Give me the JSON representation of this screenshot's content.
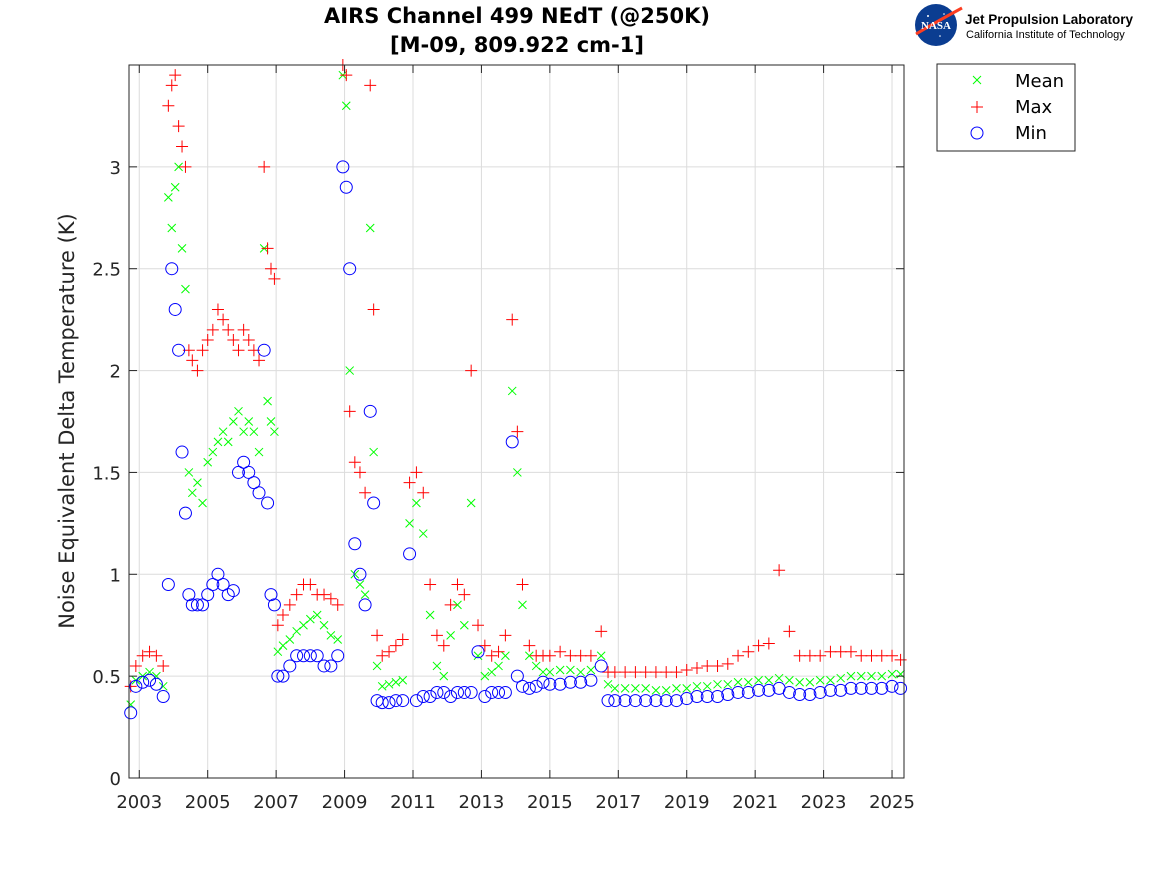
{
  "header": {
    "logo_name": "NASA",
    "org_name": "Jet Propulsion Laboratory",
    "org_subtitle": "California Institute of Technology"
  },
  "chart_data": {
    "type": "scatter",
    "title": [
      "AIRS Channel 499 NEdT (@250K)",
      "[M-09, 809.922 cm-1]"
    ],
    "xlabel": "",
    "ylabel": "Noise Equivalent Delta Temperature (K)",
    "xlim": [
      2002.7,
      2025.35
    ],
    "ylim": [
      0,
      3.5
    ],
    "x_ticks": [
      2003,
      2005,
      2007,
      2009,
      2011,
      2013,
      2015,
      2017,
      2019,
      2021,
      2023,
      2025
    ],
    "x_tick_labels": [
      "2003",
      "2005",
      "2007",
      "2009",
      "2011",
      "2013",
      "2015",
      "2017",
      "2019",
      "2021",
      "2023",
      "2025"
    ],
    "y_ticks": [
      0,
      0.5,
      1,
      1.5,
      2,
      2.5,
      3
    ],
    "y_tick_labels": [
      "0",
      "0.5",
      "1",
      "1.5",
      "2",
      "2.5",
      "3"
    ],
    "grid": true,
    "legend_position": "outside-top-right",
    "series": [
      {
        "name": "Mean",
        "marker": "x",
        "color": "#00ff00",
        "x": [
          2002.75,
          2002.9,
          2003.1,
          2003.3,
          2003.5,
          2003.7,
          2003.85,
          2003.95,
          2004.05,
          2004.15,
          2004.25,
          2004.35,
          2004.45,
          2004.55,
          2004.7,
          2004.85,
          2005.0,
          2005.15,
          2005.3,
          2005.45,
          2005.6,
          2005.75,
          2005.9,
          2006.05,
          2006.2,
          2006.35,
          2006.5,
          2006.65,
          2006.75,
          2006.85,
          2006.95,
          2007.05,
          2007.2,
          2007.4,
          2007.6,
          2007.8,
          2008.0,
          2008.2,
          2008.4,
          2008.6,
          2008.8,
          2008.95,
          2009.05,
          2009.15,
          2009.3,
          2009.45,
          2009.6,
          2009.75,
          2009.85,
          2009.95,
          2010.1,
          2010.3,
          2010.5,
          2010.7,
          2010.9,
          2011.1,
          2011.3,
          2011.5,
          2011.7,
          2011.9,
          2012.1,
          2012.3,
          2012.5,
          2012.7,
          2012.9,
          2013.1,
          2013.3,
          2013.5,
          2013.7,
          2013.9,
          2014.05,
          2014.2,
          2014.4,
          2014.6,
          2014.8,
          2015.0,
          2015.3,
          2015.6,
          2015.9,
          2016.2,
          2016.5,
          2016.7,
          2016.9,
          2017.2,
          2017.5,
          2017.8,
          2018.1,
          2018.4,
          2018.7,
          2019.0,
          2019.3,
          2019.6,
          2019.9,
          2020.2,
          2020.5,
          2020.8,
          2021.1,
          2021.4,
          2021.7,
          2022.0,
          2022.3,
          2022.6,
          2022.9,
          2023.2,
          2023.5,
          2023.8,
          2024.1,
          2024.4,
          2024.7,
          2025.0,
          2025.25
        ],
        "y": [
          0.36,
          0.48,
          0.5,
          0.52,
          0.5,
          0.45,
          2.85,
          2.7,
          2.9,
          3.0,
          2.6,
          2.4,
          1.5,
          1.4,
          1.45,
          1.35,
          1.55,
          1.6,
          1.65,
          1.7,
          1.65,
          1.75,
          1.8,
          1.7,
          1.75,
          1.7,
          1.6,
          2.6,
          1.85,
          1.75,
          1.7,
          0.62,
          0.65,
          0.68,
          0.72,
          0.75,
          0.78,
          0.8,
          0.75,
          0.7,
          0.68,
          3.45,
          3.3,
          2.0,
          1.0,
          0.95,
          0.9,
          2.7,
          1.6,
          0.55,
          0.45,
          0.46,
          0.47,
          0.48,
          1.25,
          1.35,
          1.2,
          0.8,
          0.55,
          0.5,
          0.7,
          0.85,
          0.75,
          1.35,
          0.6,
          0.5,
          0.52,
          0.55,
          0.6,
          1.9,
          1.5,
          0.85,
          0.6,
          0.55,
          0.52,
          0.52,
          0.53,
          0.53,
          0.52,
          0.53,
          0.6,
          0.46,
          0.44,
          0.44,
          0.44,
          0.44,
          0.43,
          0.43,
          0.44,
          0.44,
          0.45,
          0.45,
          0.46,
          0.46,
          0.47,
          0.47,
          0.48,
          0.48,
          0.49,
          0.48,
          0.47,
          0.47,
          0.48,
          0.48,
          0.49,
          0.5,
          0.5,
          0.5,
          0.5,
          0.51,
          0.51
        ]
      },
      {
        "name": "Max",
        "marker": "+",
        "color": "#ff0000",
        "x": [
          2002.75,
          2002.9,
          2003.1,
          2003.3,
          2003.5,
          2003.7,
          2003.85,
          2003.95,
          2004.05,
          2004.15,
          2004.25,
          2004.35,
          2004.45,
          2004.55,
          2004.7,
          2004.85,
          2005.0,
          2005.15,
          2005.3,
          2005.45,
          2005.6,
          2005.75,
          2005.9,
          2006.05,
          2006.2,
          2006.35,
          2006.5,
          2006.65,
          2006.75,
          2006.85,
          2006.95,
          2007.05,
          2007.2,
          2007.4,
          2007.6,
          2007.8,
          2008.0,
          2008.2,
          2008.4,
          2008.6,
          2008.8,
          2008.95,
          2009.05,
          2009.15,
          2009.3,
          2009.45,
          2009.6,
          2009.75,
          2009.85,
          2009.95,
          2010.1,
          2010.3,
          2010.5,
          2010.7,
          2010.9,
          2011.1,
          2011.3,
          2011.5,
          2011.7,
          2011.9,
          2012.1,
          2012.3,
          2012.5,
          2012.7,
          2012.9,
          2013.1,
          2013.3,
          2013.5,
          2013.7,
          2013.9,
          2014.05,
          2014.2,
          2014.4,
          2014.6,
          2014.8,
          2015.0,
          2015.3,
          2015.6,
          2015.9,
          2016.2,
          2016.5,
          2016.7,
          2016.9,
          2017.2,
          2017.5,
          2017.8,
          2018.1,
          2018.4,
          2018.7,
          2019.0,
          2019.3,
          2019.6,
          2019.9,
          2020.2,
          2020.5,
          2020.8,
          2021.1,
          2021.4,
          2021.7,
          2022.0,
          2022.3,
          2022.6,
          2022.9,
          2023.2,
          2023.5,
          2023.8,
          2024.1,
          2024.4,
          2024.7,
          2025.0,
          2025.25
        ],
        "y": [
          0.45,
          0.55,
          0.6,
          0.62,
          0.6,
          0.55,
          3.3,
          3.4,
          3.45,
          3.2,
          3.1,
          3.0,
          2.1,
          2.05,
          2.0,
          2.1,
          2.15,
          2.2,
          2.3,
          2.25,
          2.2,
          2.15,
          2.1,
          2.2,
          2.15,
          2.1,
          2.05,
          3.0,
          2.6,
          2.5,
          2.45,
          0.75,
          0.8,
          0.85,
          0.9,
          0.95,
          0.95,
          0.9,
          0.9,
          0.88,
          0.85,
          3.5,
          3.45,
          1.8,
          1.55,
          1.5,
          1.4,
          3.4,
          2.3,
          0.7,
          0.6,
          0.62,
          0.65,
          0.68,
          1.45,
          1.5,
          1.4,
          0.95,
          0.7,
          0.65,
          0.85,
          0.95,
          0.9,
          2.0,
          0.75,
          0.65,
          0.6,
          0.62,
          0.7,
          2.25,
          1.7,
          0.95,
          0.65,
          0.6,
          0.6,
          0.6,
          0.62,
          0.6,
          0.6,
          0.6,
          0.72,
          0.52,
          0.52,
          0.52,
          0.52,
          0.52,
          0.52,
          0.52,
          0.52,
          0.53,
          0.54,
          0.55,
          0.55,
          0.56,
          0.6,
          0.62,
          0.65,
          0.66,
          1.02,
          0.72,
          0.6,
          0.6,
          0.6,
          0.62,
          0.62,
          0.62,
          0.6,
          0.6,
          0.6,
          0.6,
          0.58
        ]
      },
      {
        "name": "Min",
        "marker": "o",
        "color": "#0000ff",
        "x": [
          2002.75,
          2002.9,
          2003.1,
          2003.3,
          2003.5,
          2003.7,
          2003.85,
          2003.95,
          2004.05,
          2004.15,
          2004.25,
          2004.35,
          2004.45,
          2004.55,
          2004.7,
          2004.85,
          2005.0,
          2005.15,
          2005.3,
          2005.45,
          2005.6,
          2005.75,
          2005.9,
          2006.05,
          2006.2,
          2006.35,
          2006.5,
          2006.65,
          2006.75,
          2006.85,
          2006.95,
          2007.05,
          2007.2,
          2007.4,
          2007.6,
          2007.8,
          2008.0,
          2008.2,
          2008.4,
          2008.6,
          2008.8,
          2008.95,
          2009.05,
          2009.15,
          2009.3,
          2009.45,
          2009.6,
          2009.75,
          2009.85,
          2009.95,
          2010.1,
          2010.3,
          2010.5,
          2010.7,
          2010.9,
          2011.1,
          2011.3,
          2011.5,
          2011.7,
          2011.9,
          2012.1,
          2012.3,
          2012.5,
          2012.7,
          2012.9,
          2013.1,
          2013.3,
          2013.5,
          2013.7,
          2013.9,
          2014.05,
          2014.2,
          2014.4,
          2014.6,
          2014.8,
          2015.0,
          2015.3,
          2015.6,
          2015.9,
          2016.2,
          2016.5,
          2016.7,
          2016.9,
          2017.2,
          2017.5,
          2017.8,
          2018.1,
          2018.4,
          2018.7,
          2019.0,
          2019.3,
          2019.6,
          2019.9,
          2020.2,
          2020.5,
          2020.8,
          2021.1,
          2021.4,
          2021.7,
          2022.0,
          2022.3,
          2022.6,
          2022.9,
          2023.2,
          2023.5,
          2023.8,
          2024.1,
          2024.4,
          2024.7,
          2025.0,
          2025.25
        ],
        "y": [
          0.32,
          0.45,
          0.47,
          0.48,
          0.46,
          0.4,
          0.95,
          2.5,
          2.3,
          2.1,
          1.6,
          1.3,
          0.9,
          0.85,
          0.85,
          0.85,
          0.9,
          0.95,
          1.0,
          0.95,
          0.9,
          0.92,
          1.5,
          1.55,
          1.5,
          1.45,
          1.4,
          2.1,
          1.35,
          0.9,
          0.85,
          0.5,
          0.5,
          0.55,
          0.6,
          0.6,
          0.6,
          0.6,
          0.55,
          0.55,
          0.6,
          3.0,
          2.9,
          2.5,
          1.15,
          1.0,
          0.85,
          1.8,
          1.35,
          0.38,
          0.37,
          0.37,
          0.38,
          0.38,
          1.1,
          0.38,
          0.4,
          0.4,
          0.42,
          0.42,
          0.4,
          0.42,
          0.42,
          0.42,
          0.62,
          0.4,
          0.42,
          0.42,
          0.42,
          1.65,
          0.5,
          0.45,
          0.44,
          0.45,
          0.47,
          0.46,
          0.46,
          0.47,
          0.47,
          0.48,
          0.55,
          0.38,
          0.38,
          0.38,
          0.38,
          0.38,
          0.38,
          0.38,
          0.38,
          0.39,
          0.4,
          0.4,
          0.4,
          0.41,
          0.42,
          0.42,
          0.43,
          0.43,
          0.44,
          0.42,
          0.41,
          0.41,
          0.42,
          0.43,
          0.43,
          0.44,
          0.44,
          0.44,
          0.44,
          0.45,
          0.44
        ]
      }
    ]
  }
}
